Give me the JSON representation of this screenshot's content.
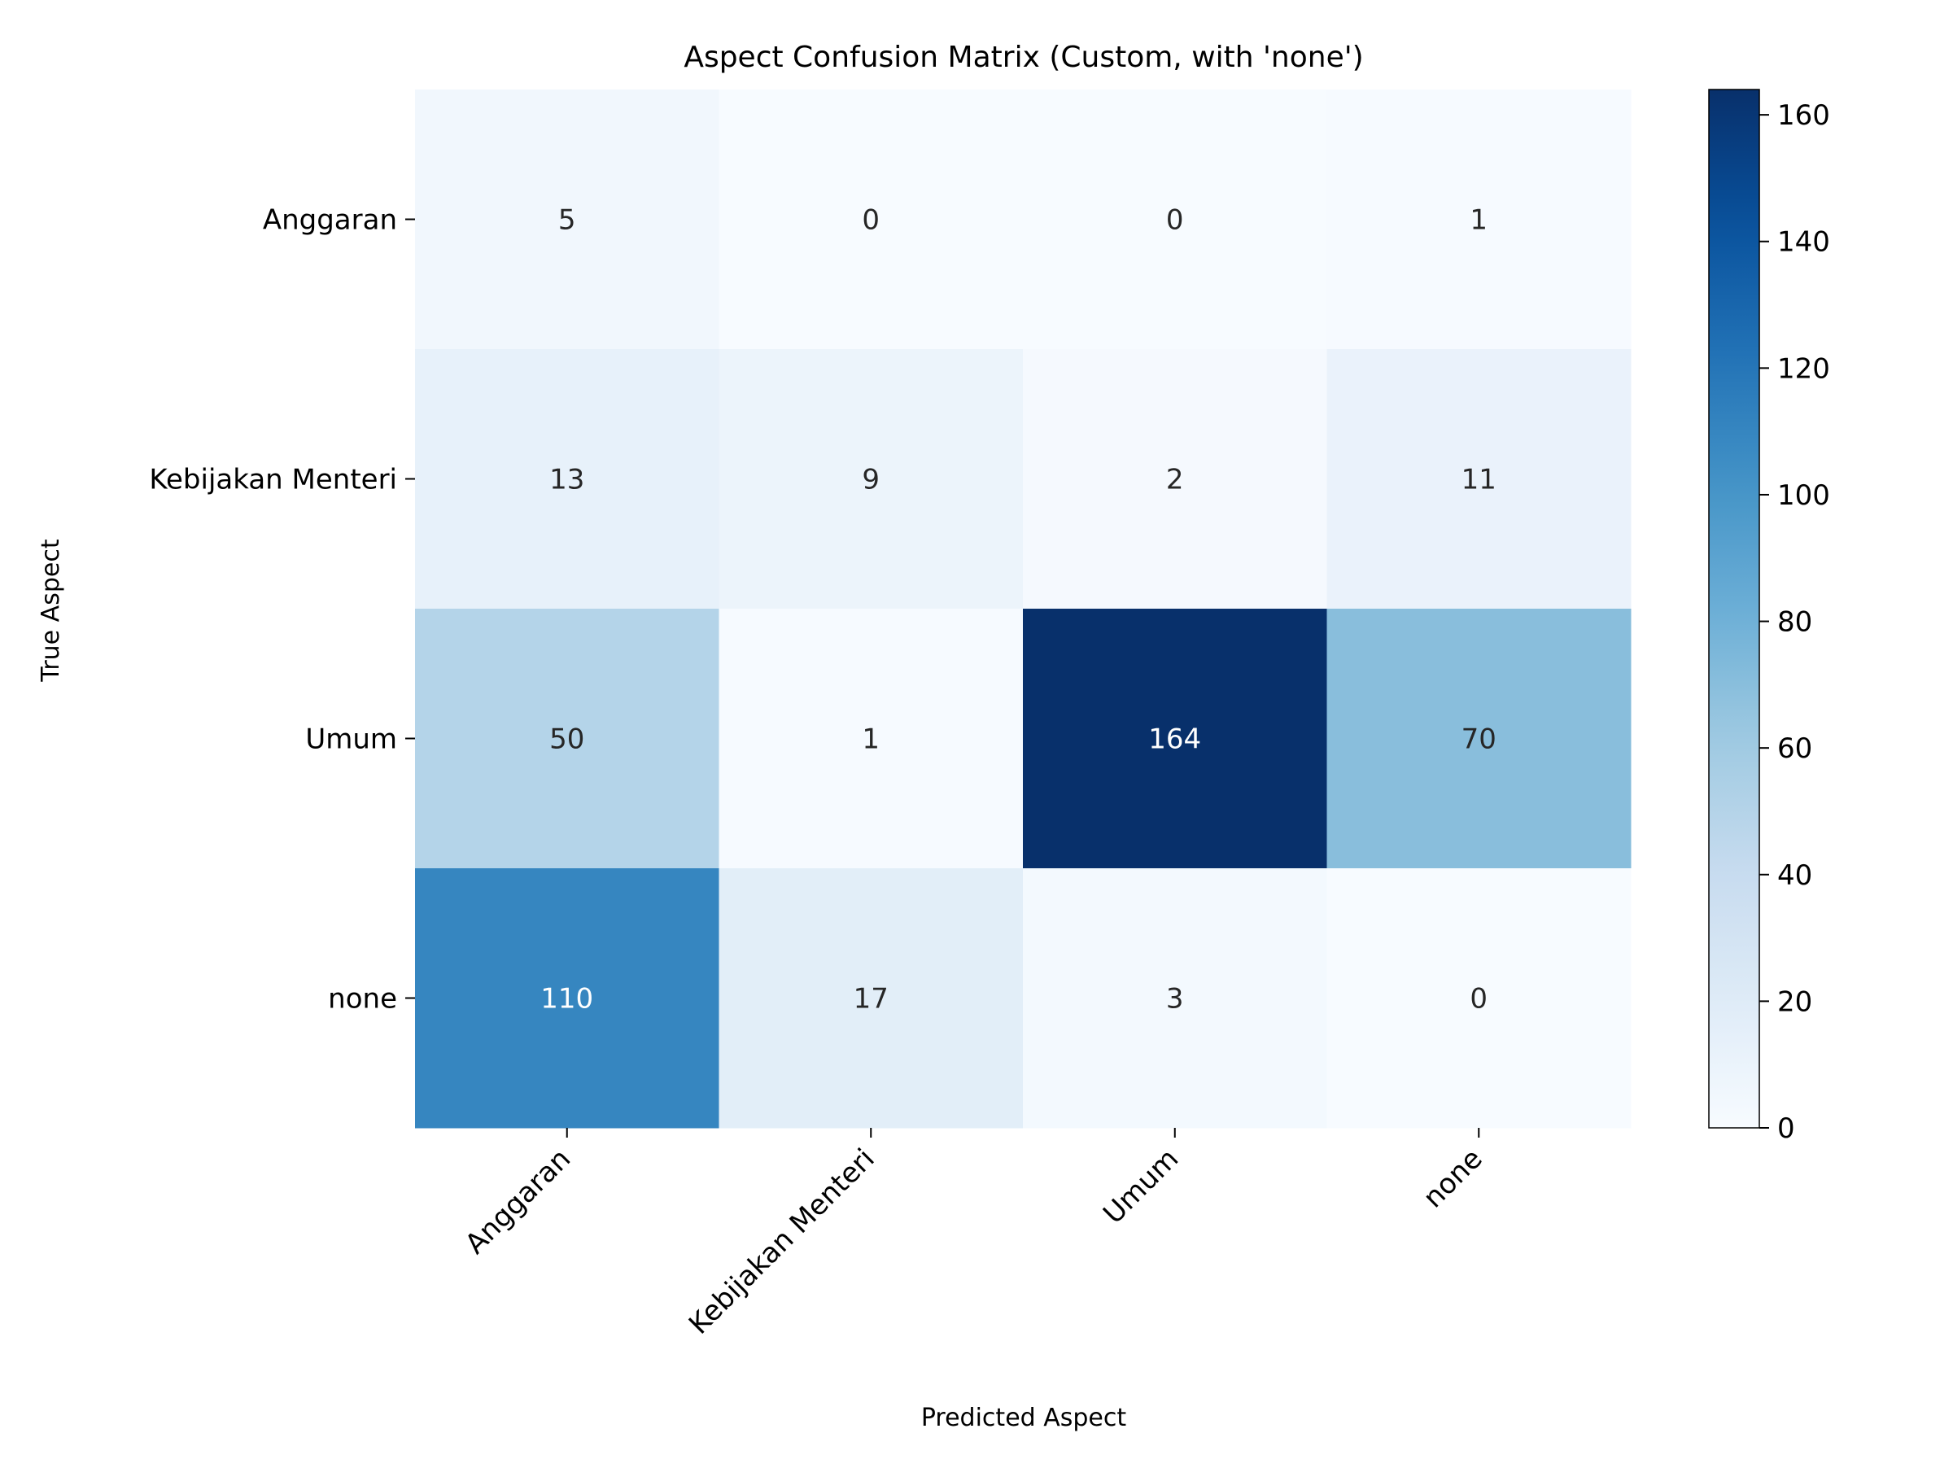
{
  "chart_data": {
    "type": "heatmap",
    "title": "Aspect Confusion Matrix (Custom, with 'none')",
    "xlabel": "Predicted Aspect",
    "ylabel": "True Aspect",
    "x_categories": [
      "Anggaran",
      "Kebijakan Menteri",
      "Umum",
      "none"
    ],
    "y_categories": [
      "Anggaran",
      "Kebijakan Menteri",
      "Umum",
      "none"
    ],
    "values": [
      [
        5,
        0,
        0,
        1
      ],
      [
        13,
        9,
        2,
        11
      ],
      [
        50,
        1,
        164,
        70
      ],
      [
        110,
        17,
        3,
        0
      ]
    ],
    "colorbar": {
      "min": 0,
      "max": 164,
      "ticks": [
        0,
        20,
        40,
        60,
        80,
        100,
        120,
        140,
        160
      ],
      "colormap": "Blues"
    },
    "x_tick_rotation_deg": 45,
    "grid": false
  }
}
